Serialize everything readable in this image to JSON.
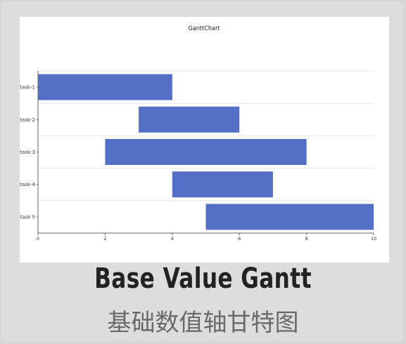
{
  "caption": {
    "english": "Base Value Gantt",
    "chinese": "基础数值轴甘特图"
  },
  "chart_data": {
    "type": "bar",
    "orientation": "horizontal-gantt",
    "title": "GanttChart",
    "categories": [
      "task-1",
      "task-2",
      "task-3",
      "task-4",
      "task 5"
    ],
    "series": [
      {
        "start": [
          0,
          3,
          2,
          4,
          5
        ],
        "end": [
          4,
          6,
          8,
          7,
          10
        ]
      }
    ],
    "xlim": [
      0,
      10
    ],
    "xticks": [
      0,
      2,
      4,
      6,
      8,
      10
    ],
    "grid": "horizontal",
    "legend": "none",
    "bar_color": "#5470c6"
  }
}
